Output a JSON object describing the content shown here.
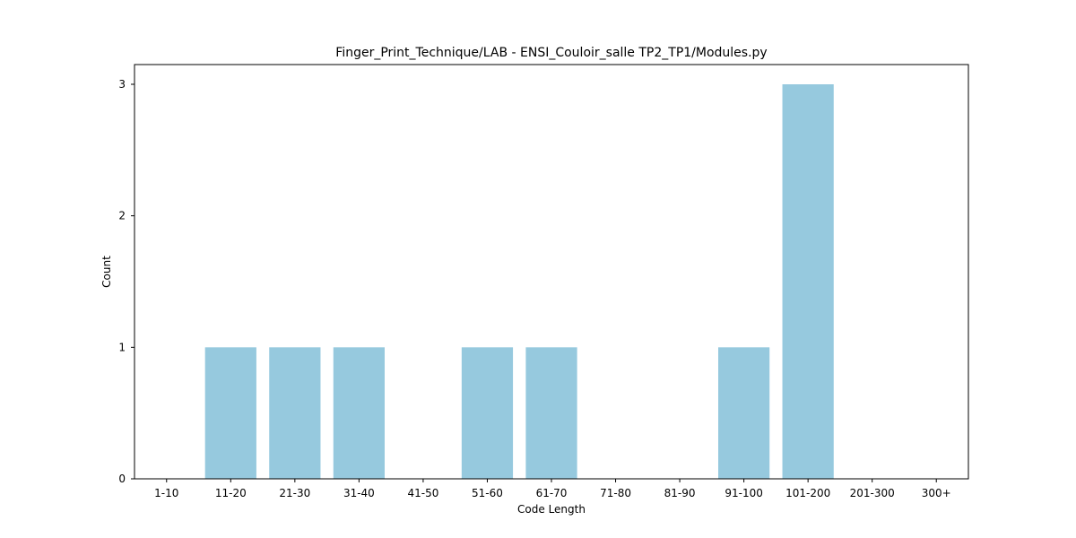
{
  "chart_data": {
    "type": "bar",
    "title": "Finger_Print_Technique/LAB - ENSI_Couloir_salle TP2_TP1/Modules.py",
    "xlabel": "Code Length",
    "ylabel": "Count",
    "categories": [
      "1-10",
      "11-20",
      "21-30",
      "31-40",
      "41-50",
      "51-60",
      "61-70",
      "71-80",
      "81-90",
      "91-100",
      "101-200",
      "201-300",
      "300+"
    ],
    "values": [
      0,
      1,
      1,
      1,
      0,
      1,
      1,
      0,
      0,
      1,
      3,
      0,
      0
    ],
    "ylim": [
      0,
      3.15
    ],
    "yticks": [
      0,
      1,
      2,
      3
    ],
    "bar_color": "#96c9de",
    "grid": false,
    "legend": "none"
  }
}
